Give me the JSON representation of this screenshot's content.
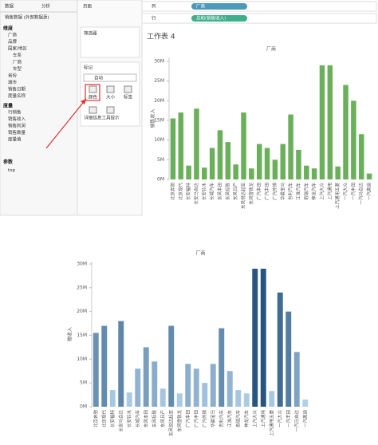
{
  "ui": {
    "tabs": [
      "数据",
      "分析"
    ],
    "datasource": "销售数据 (外部数据源)",
    "dimensions_header": "维度",
    "dimensions": [
      "厂商",
      "品牌",
      "国家/地区",
      "车系",
      "厂商",
      "车型",
      "省份",
      "城市",
      "销售日期",
      "度量名称"
    ],
    "measures_header": "度量",
    "measures": [
      "行销售",
      "销售收入",
      "销售利润",
      "销售数量",
      "度量值"
    ],
    "params_header": "参数",
    "params": [
      "top"
    ],
    "pages": "页面",
    "filters": "筛选器",
    "marks": "标记",
    "mark_type": "自动",
    "mark_buttons": [
      "颜色",
      "大小",
      "标签",
      "详细信息",
      "工具提示"
    ],
    "columns_label": "列",
    "rows_label": "行",
    "columns_pill": "厂商",
    "rows_pill": "总和(销售收入)",
    "sheet_title": "工作表 4"
  },
  "chart_data": [
    {
      "type": "bar",
      "title": "厂商",
      "y_label": "销售收入",
      "color": "#6aaf5a",
      "categories": [
        "北京奔驰",
        "北京现代",
        "长安福特",
        "长安马自达",
        "长安铃木",
        "长城汽车",
        "东风本田",
        "东风标致",
        "东风日产",
        "东风悦达起亚",
        "东风雪铁龙",
        "广汽本田",
        "广汽丰田",
        "广汽传祺",
        "华晨宝马",
        "吉利汽车",
        "江淮汽车",
        "奇瑞汽车",
        "神龙汽车",
        "上汽大众",
        "上汽通用",
        "上汽通用五菱",
        "一汽大众",
        "一汽丰田",
        "一汽马自达",
        "一汽奥迪"
      ],
      "values": [
        15500000,
        17000000,
        3500000,
        18000000,
        3000000,
        8000000,
        12500000,
        9500000,
        3800000,
        17000000,
        2800000,
        9000000,
        8000000,
        5000000,
        9000000,
        16500000,
        7500000,
        3500000,
        2800000,
        29000000,
        29000000,
        3300000,
        24000000,
        20000000,
        11500000,
        1500000
      ],
      "ylim": [
        0,
        31000000
      ],
      "yticks": [
        {
          "value": 0,
          "label": "0M"
        },
        {
          "value": 5000000,
          "label": "5M"
        },
        {
          "value": 10000000,
          "label": "10M"
        },
        {
          "value": 15000000,
          "label": "15M"
        },
        {
          "value": 20000000,
          "label": "20M"
        },
        {
          "value": 25000000,
          "label": "25M"
        },
        {
          "value": 30000000,
          "label": "30M"
        }
      ],
      "grid": false
    },
    {
      "type": "bar",
      "title": "厂商",
      "y_label": "按收入",
      "color_range": [
        "#b9d7ee",
        "#1f4e79"
      ],
      "categories": [
        "北京奔驰",
        "北京现代",
        "长安福特",
        "长安马自达",
        "长安铃木",
        "长城汽车",
        "东风本田",
        "东风标致",
        "东风日产",
        "东风悦达起亚",
        "东风雪铁龙",
        "广汽本田",
        "广汽丰田",
        "广汽传祺",
        "华晨宝马",
        "吉利汽车",
        "江淮汽车",
        "奇瑞汽车",
        "神龙汽车",
        "上汽大众",
        "上汽通用",
        "上汽通用五菱",
        "一汽大众",
        "一汽丰田",
        "一汽马自达",
        "一汽奥迪"
      ],
      "values": [
        15500000,
        17000000,
        3500000,
        18000000,
        3000000,
        8000000,
        12500000,
        9500000,
        3800000,
        17000000,
        2800000,
        9000000,
        8000000,
        5000000,
        9000000,
        16500000,
        7500000,
        3500000,
        2800000,
        29000000,
        29000000,
        3300000,
        24000000,
        20000000,
        11500000,
        1500000
      ],
      "ylim": [
        0,
        30500000
      ],
      "yticks": [
        {
          "value": 0,
          "label": "0M"
        },
        {
          "value": 5000000,
          "label": "5M"
        },
        {
          "value": 10000000,
          "label": "10M"
        },
        {
          "value": 15000000,
          "label": "15M"
        },
        {
          "value": 20000000,
          "label": "20M"
        },
        {
          "value": 25000000,
          "label": "25M"
        },
        {
          "value": 30000000,
          "label": "30M"
        }
      ],
      "grid": false
    }
  ]
}
